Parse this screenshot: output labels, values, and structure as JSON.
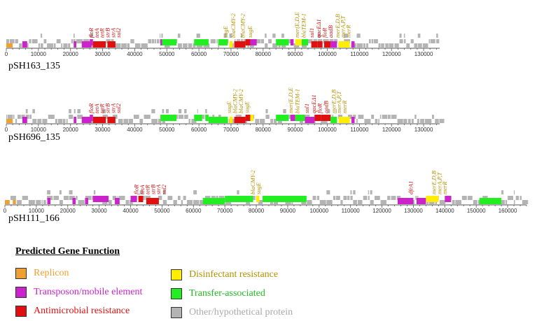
{
  "colors": {
    "replicon": "#f0a030",
    "transposon": "#cc22cc",
    "amr": "#e01010",
    "disinfectant": "#ffee00",
    "transfer": "#22ee22",
    "other": "#b4b4b4",
    "red_label": "#cc1111",
    "gold_label": "#b09000"
  },
  "plasmids": [
    {
      "name": "pSH163_135",
      "length": 135000,
      "ticks": [
        "0",
        "10000",
        "20000",
        "30000",
        "40000",
        "50000",
        "60000",
        "70000",
        "80000",
        "90000",
        "100000",
        "110000",
        "120000",
        "130000"
      ],
      "annotations": [
        {
          "text": "floR",
          "pos": 27000,
          "color": "red"
        },
        {
          "text": "tetA",
          "pos": 28800,
          "color": "red"
        },
        {
          "text": "tetR",
          "pos": 30400,
          "color": "red"
        },
        {
          "text": "strB",
          "pos": 32200,
          "color": "red"
        },
        {
          "text": "strA",
          "pos": 33900,
          "color": "red"
        },
        {
          "text": "sul2",
          "pos": 35600,
          "color": "red"
        },
        {
          "text": "sugE",
          "pos": 68900,
          "color": "gold"
        },
        {
          "text": "blaCMY-2",
          "pos": 71300,
          "color": "gold"
        },
        {
          "text": "blaCMY-2",
          "pos": 74300,
          "color": "gold"
        },
        {
          "text": "sugE",
          "pos": 76500,
          "color": "gold"
        },
        {
          "text": "mer(E,D,E",
          "pos": 91200,
          "color": "gold"
        },
        {
          "text": "blaTEM-1",
          "pos": 93200,
          "color": "gold"
        },
        {
          "text": "sul1",
          "pos": 95700,
          "color": "red"
        },
        {
          "text": "qacEΔ1",
          "pos": 97900,
          "color": "red"
        },
        {
          "text": "floR",
          "pos": 99800,
          "color": "red"
        },
        {
          "text": "aadB",
          "pos": 101600,
          "color": "red"
        },
        {
          "text": "merE,D,B",
          "pos": 103800,
          "color": "gold"
        },
        {
          "text": "merA,P,T",
          "pos": 105500,
          "color": "gold"
        },
        {
          "text": "merR",
          "pos": 107200,
          "color": "gold"
        }
      ]
    },
    {
      "name": "pSH696_135",
      "length": 135000,
      "ticks": [
        "0",
        "10000",
        "20000",
        "30000",
        "40000",
        "50000",
        "60000",
        "70000",
        "80000",
        "90000",
        "100000",
        "110000",
        "120000",
        "130000"
      ],
      "annotations": [
        {
          "text": "floR",
          "pos": 27000,
          "color": "red"
        },
        {
          "text": "tetA",
          "pos": 28800,
          "color": "red"
        },
        {
          "text": "tetR",
          "pos": 30400,
          "color": "red"
        },
        {
          "text": "strB",
          "pos": 32200,
          "color": "red"
        },
        {
          "text": "strA",
          "pos": 33900,
          "color": "red"
        },
        {
          "text": "sul2",
          "pos": 35600,
          "color": "red"
        },
        {
          "text": "sugE",
          "pos": 70000,
          "color": "gold"
        },
        {
          "text": "blaCMY-2",
          "pos": 71900,
          "color": "gold"
        },
        {
          "text": "blaCMY-2",
          "pos": 73700,
          "color": "gold"
        },
        {
          "text": "sugE",
          "pos": 75600,
          "color": "gold"
        },
        {
          "text": "mer(E,D,E",
          "pos": 89200,
          "color": "gold"
        },
        {
          "text": "blaTEM-1",
          "pos": 91300,
          "color": "gold"
        },
        {
          "text": "sul1",
          "pos": 94200,
          "color": "red"
        },
        {
          "text": "qacEΔ1",
          "pos": 96400,
          "color": "red"
        },
        {
          "text": "floR",
          "pos": 98300,
          "color": "red"
        },
        {
          "text": "aadB",
          "pos": 100200,
          "color": "red"
        },
        {
          "text": "merE,D,B",
          "pos": 102600,
          "color": "gold"
        },
        {
          "text": "merA,P,T",
          "pos": 104300,
          "color": "gold"
        },
        {
          "text": "merR",
          "pos": 106000,
          "color": "gold"
        }
      ]
    },
    {
      "name": "pSH111_166",
      "length": 166000,
      "ticks": [
        "0",
        "10000",
        "20000",
        "30000",
        "40000",
        "50000",
        "60000",
        "70000",
        "80000",
        "90000",
        "100000",
        "110000",
        "120000",
        "130000",
        "140000",
        "150000",
        "160000"
      ],
      "annotations": [
        {
          "text": "floR",
          "pos": 42500,
          "color": "red"
        },
        {
          "text": "tetA",
          "pos": 44300,
          "color": "red"
        },
        {
          "text": "tetR",
          "pos": 46000,
          "color": "red"
        },
        {
          "text": "strB",
          "pos": 47800,
          "color": "red"
        },
        {
          "text": "strA",
          "pos": 49500,
          "color": "red"
        },
        {
          "text": "sul2",
          "pos": 51200,
          "color": "red"
        },
        {
          "text": "blaCMY-2",
          "pos": 79500,
          "color": "gold"
        },
        {
          "text": "sugE",
          "pos": 81300,
          "color": "gold"
        },
        {
          "text": "dfrA1",
          "pos": 129800,
          "color": "red"
        },
        {
          "text": "merE,D,B",
          "pos": 137200,
          "color": "gold"
        },
        {
          "text": "merA,P,T",
          "pos": 138900,
          "color": "gold"
        },
        {
          "text": "merR",
          "pos": 140600,
          "color": "gold"
        }
      ]
    }
  ],
  "legend": {
    "title": "Predicted Gene Function",
    "items": [
      {
        "label": "Replicon",
        "color_key": "replicon",
        "text_color": "#f0a030"
      },
      {
        "label": "Transposon/mobile element",
        "color_key": "transposon",
        "text_color": "#cc22cc"
      },
      {
        "label": "Antimicrobial resistance",
        "color_key": "amr",
        "text_color": "#e01010"
      },
      {
        "label": "Disinfectant resistance",
        "color_key": "disinfectant",
        "text_color": "#b09000"
      },
      {
        "label": "Transfer-associated",
        "color_key": "transfer",
        "text_color": "#22bb22"
      },
      {
        "label": "Other/hypothetical protein",
        "color_key": "other",
        "text_color": "#aaaaaa"
      }
    ]
  }
}
